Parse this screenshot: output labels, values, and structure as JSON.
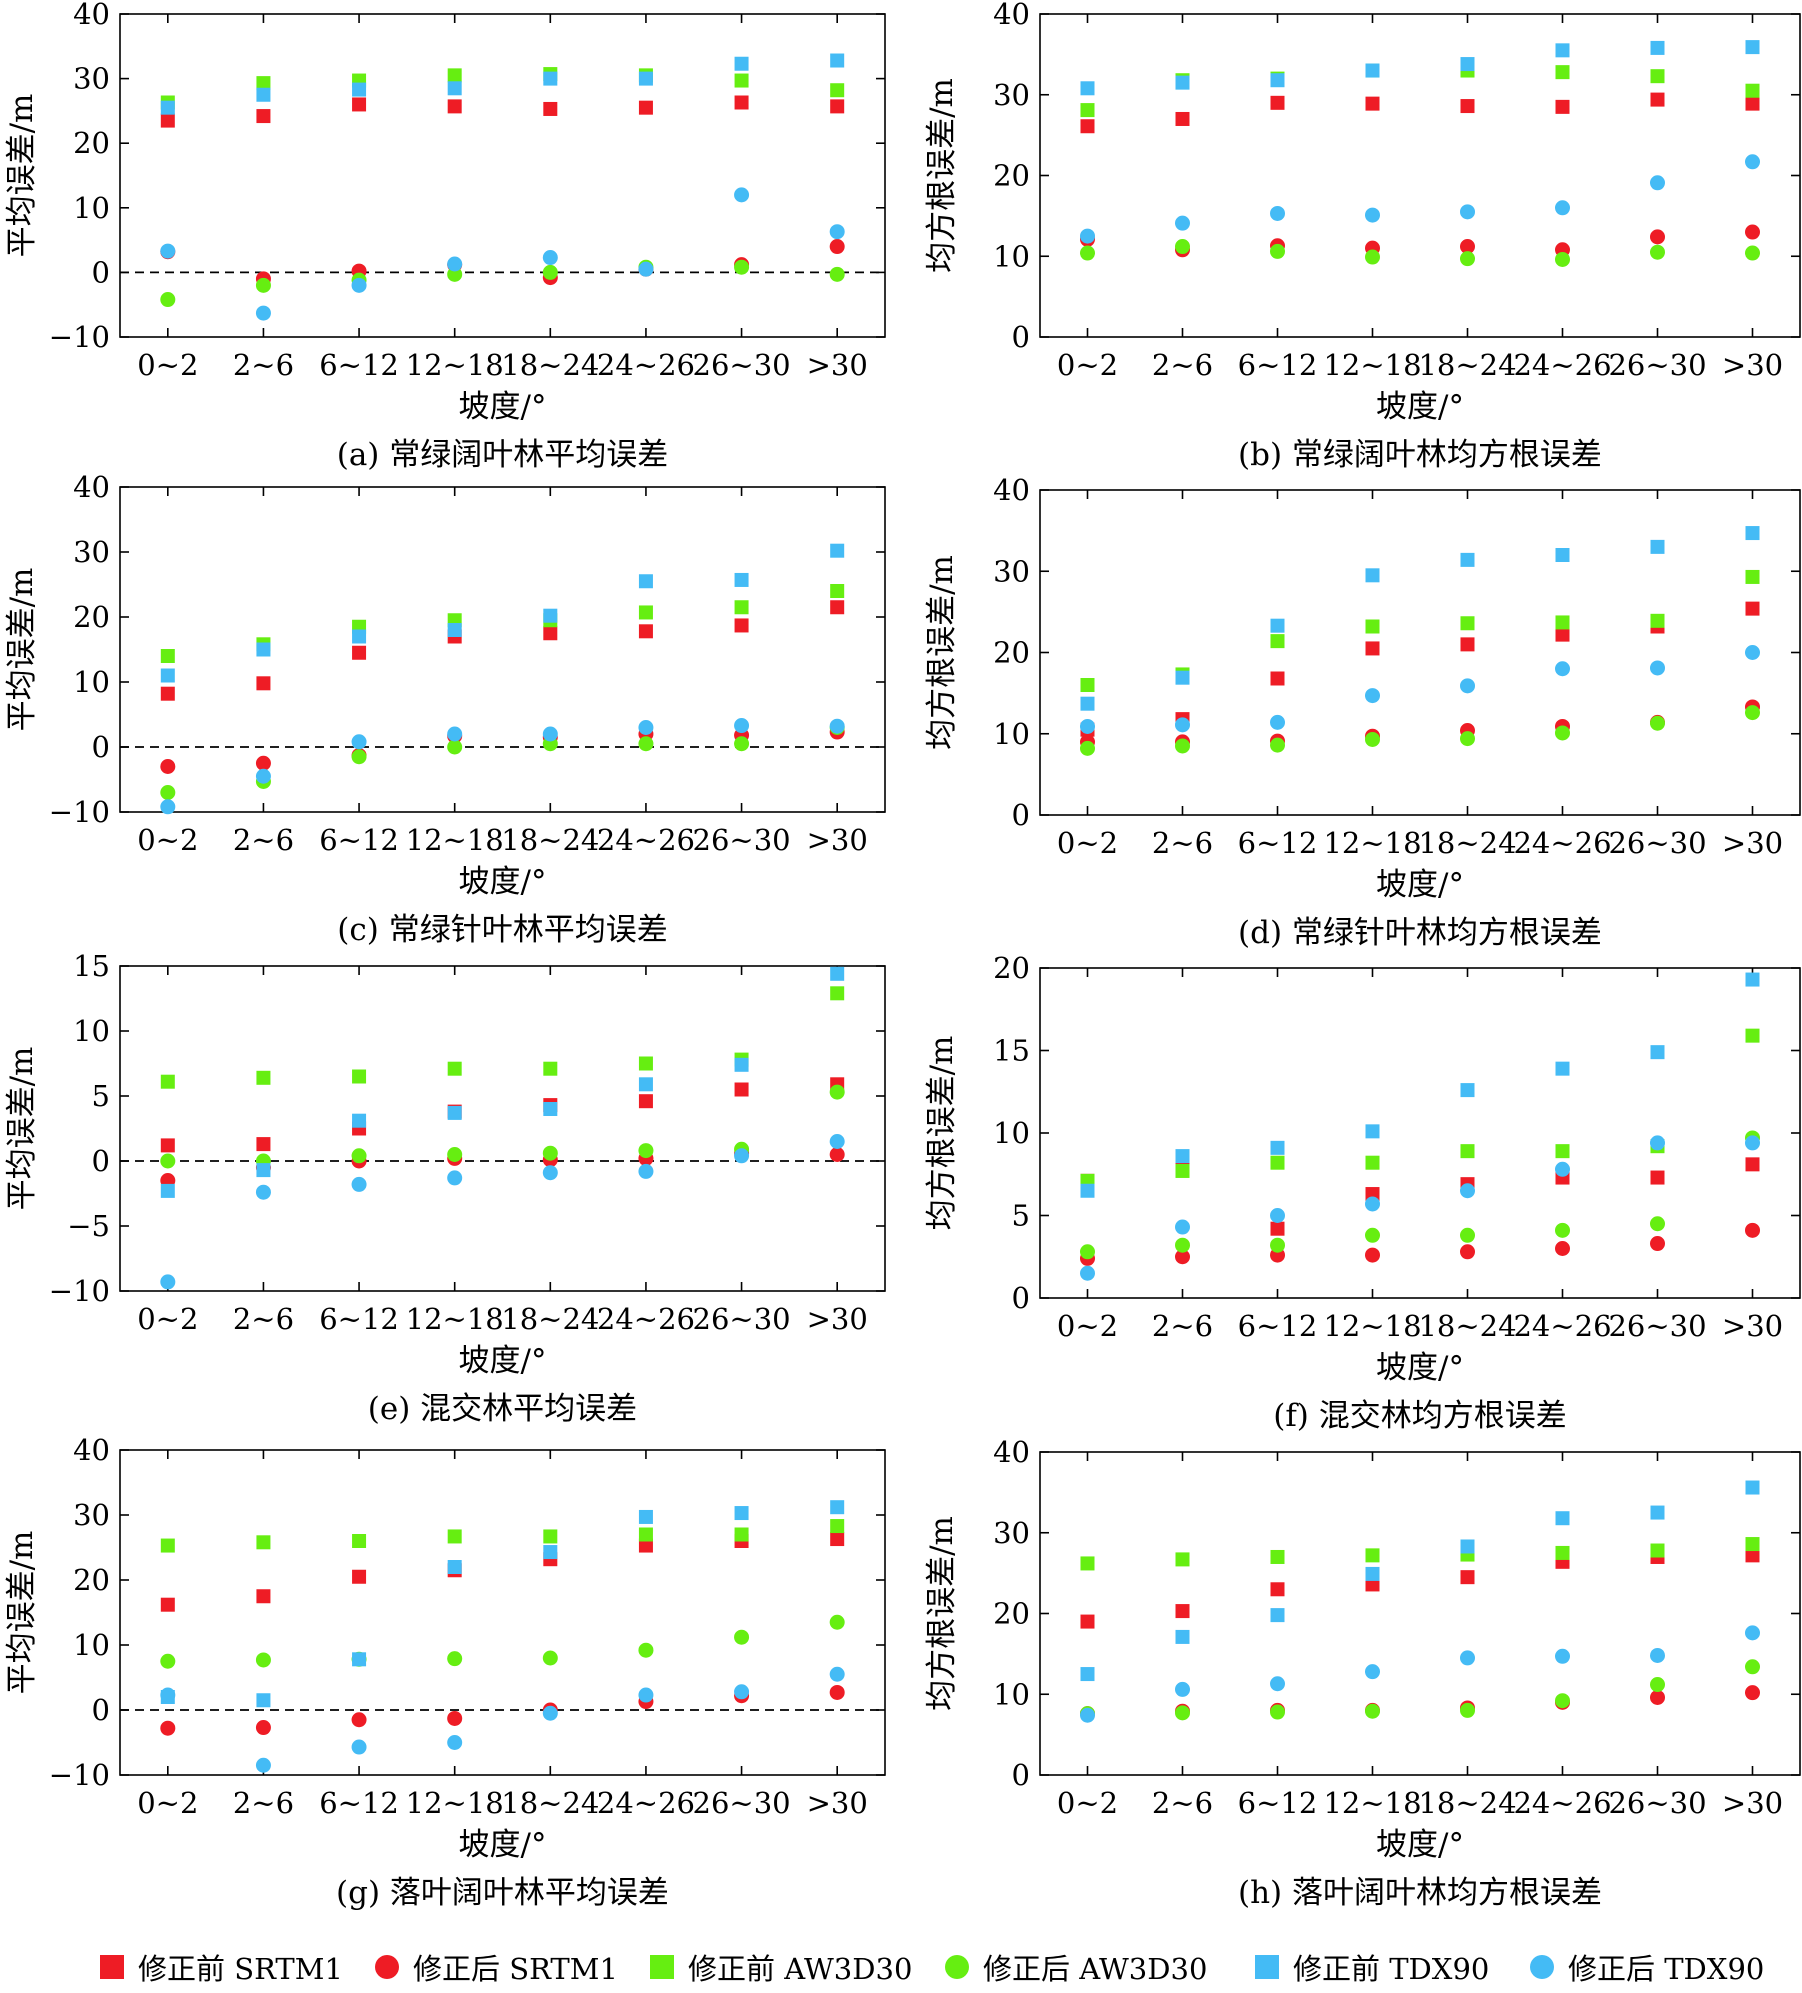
{
  "colors": {
    "srtm": "#ee1c25",
    "aw3d": "#66ee11",
    "tdx": "#44bbf5"
  },
  "legend": [
    {
      "label": "修正前 SRTM1",
      "marker": "square",
      "color": "#ee1c25"
    },
    {
      "label": "修正后 SRTM1",
      "marker": "circle",
      "color": "#ee1c25"
    },
    {
      "label": "修正前 AW3D30",
      "marker": "square",
      "color": "#66ee11"
    },
    {
      "label": "修正后 AW3D30",
      "marker": "circle",
      "color": "#66ee11"
    },
    {
      "label": "修正前 TDX90",
      "marker": "square",
      "color": "#44bbf5"
    },
    {
      "label": "修正后 TDX90",
      "marker": "circle",
      "color": "#44bbf5"
    }
  ],
  "chart_data": [
    {
      "type": "scatter",
      "caption": "(a) 常绿阔叶林平均误差",
      "xlabel": "坡度/°",
      "ylabel": "平均误差/m",
      "categories": [
        "0~2",
        "2~6",
        "6~12",
        "12~18",
        "18~24",
        "24~26",
        "26~30",
        ">30"
      ],
      "ylim": [
        -10,
        40
      ],
      "yticks": [
        -10,
        0,
        10,
        20,
        30,
        40
      ],
      "zero_line": true,
      "series": [
        {
          "name": "修正前 SRTM1",
          "values": [
            23.5,
            24.2,
            26,
            25.7,
            25.3,
            25.5,
            26.3,
            25.7
          ]
        },
        {
          "name": "修正后 SRTM1",
          "values": [
            3.2,
            -1,
            0.2,
            1.2,
            -0.8,
            0.5,
            1.2,
            4
          ]
        },
        {
          "name": "修正前 AW3D30",
          "values": [
            26.3,
            29.3,
            29.7,
            30.5,
            30.7,
            30.5,
            29.7,
            28.2
          ]
        },
        {
          "name": "修正后 AW3D30",
          "values": [
            -4.2,
            -2,
            -1.2,
            -0.3,
            0,
            0.8,
            0.8,
            -0.3
          ]
        },
        {
          "name": "修正前 TDX90",
          "values": [
            25.5,
            27.5,
            28.3,
            28.5,
            30,
            30,
            32.3,
            32.8
          ]
        },
        {
          "name": "修正后 TDX90",
          "values": [
            3.3,
            -6.3,
            -2,
            1.3,
            2.3,
            0.5,
            12,
            6.3
          ]
        }
      ]
    },
    {
      "type": "scatter",
      "caption": "(b) 常绿阔叶林均方根误差",
      "xlabel": "坡度/°",
      "ylabel": "均方根误差/m",
      "categories": [
        "0~2",
        "2~6",
        "6~12",
        "12~18",
        "18~24",
        "24~26",
        "26~30",
        ">30"
      ],
      "ylim": [
        0,
        40
      ],
      "yticks": [
        0,
        10,
        20,
        30,
        40
      ],
      "zero_line": false,
      "series": [
        {
          "name": "修正前 SRTM1",
          "values": [
            26.1,
            27,
            29,
            28.9,
            28.6,
            28.5,
            29.4,
            28.9
          ]
        },
        {
          "name": "修正后 SRTM1",
          "values": [
            12.1,
            10.8,
            11.3,
            11,
            11.2,
            10.8,
            12.4,
            13
          ]
        },
        {
          "name": "修正前 AW3D30",
          "values": [
            28.1,
            31.8,
            32,
            33,
            33,
            32.8,
            32.3,
            30.5
          ]
        },
        {
          "name": "修正后 AW3D30",
          "values": [
            10.4,
            11.2,
            10.6,
            9.9,
            9.7,
            9.6,
            10.5,
            10.4
          ]
        },
        {
          "name": "修正前 TDX90",
          "values": [
            30.8,
            31.5,
            31.8,
            33,
            33.8,
            35.5,
            35.8,
            35.9
          ]
        },
        {
          "name": "修正后 TDX90",
          "values": [
            12.5,
            14.1,
            15.3,
            15.1,
            15.5,
            16,
            19.1,
            21.7
          ]
        }
      ]
    },
    {
      "type": "scatter",
      "caption": "(c) 常绿针叶林平均误差",
      "xlabel": "坡度/°",
      "ylabel": "平均误差/m",
      "categories": [
        "0~2",
        "2~6",
        "6~12",
        "12~18",
        "18~24",
        "24~26",
        "26~30",
        ">30"
      ],
      "ylim": [
        -10,
        40
      ],
      "yticks": [
        -10,
        0,
        10,
        20,
        30,
        40
      ],
      "zero_line": true,
      "series": [
        {
          "name": "修正前 SRTM1",
          "values": [
            8.2,
            9.8,
            14.5,
            17,
            17.5,
            17.8,
            18.7,
            21.5
          ]
        },
        {
          "name": "修正后 SRTM1",
          "values": [
            -3,
            -2.5,
            -1.3,
            1.7,
            1.5,
            2,
            1.8,
            2.3
          ]
        },
        {
          "name": "修正前 AW3D30",
          "values": [
            14,
            15.8,
            18.5,
            19.5,
            19.5,
            20.7,
            21.5,
            24
          ]
        },
        {
          "name": "修正后 AW3D30",
          "values": [
            -7,
            -5.3,
            -1.5,
            0,
            0.5,
            0.5,
            0.5,
            3
          ]
        },
        {
          "name": "修正前 TDX90",
          "values": [
            11,
            15,
            17,
            18,
            20.2,
            25.5,
            25.7,
            30.2
          ]
        },
        {
          "name": "修正后 TDX90",
          "values": [
            -9.2,
            -4.5,
            0.8,
            2,
            2,
            3,
            3.3,
            3.2
          ]
        }
      ]
    },
    {
      "type": "scatter",
      "caption": "(d) 常绿针叶林均方根误差",
      "xlabel": "坡度/°",
      "ylabel": "均方根误差/m",
      "categories": [
        "0~2",
        "2~6",
        "6~12",
        "12~18",
        "18~24",
        "24~26",
        "26~30",
        ">30"
      ],
      "ylim": [
        0,
        40
      ],
      "yticks": [
        0,
        10,
        20,
        30,
        40
      ],
      "zero_line": false,
      "series": [
        {
          "name": "修正前 SRTM1",
          "values": [
            10.5,
            11.8,
            16.8,
            20.5,
            21,
            22.2,
            23.2,
            25.4
          ]
        },
        {
          "name": "修正后 SRTM1",
          "values": [
            9,
            9,
            9.1,
            9.7,
            10.4,
            10.9,
            11.4,
            13.3
          ]
        },
        {
          "name": "修正前 AW3D30",
          "values": [
            16,
            17.3,
            21.4,
            23.2,
            23.6,
            23.7,
            23.9,
            29.3
          ]
        },
        {
          "name": "修正后 AW3D30",
          "values": [
            8.2,
            8.5,
            8.6,
            9.3,
            9.4,
            10.1,
            11.3,
            12.6
          ]
        },
        {
          "name": "修正前 TDX90",
          "values": [
            13.7,
            16.9,
            23.3,
            29.5,
            31.4,
            32,
            33,
            34.7
          ]
        },
        {
          "name": "修正后 TDX90",
          "values": [
            10.9,
            11.1,
            11.4,
            14.7,
            15.9,
            18,
            18.1,
            20
          ]
        }
      ]
    },
    {
      "type": "scatter",
      "caption": "(e) 混交林平均误差",
      "xlabel": "坡度/°",
      "ylabel": "平均误差/m",
      "categories": [
        "0~2",
        "2~6",
        "6~12",
        "12~18",
        "18~24",
        "24~26",
        "26~30",
        ">30"
      ],
      "ylim": [
        -10,
        15
      ],
      "yticks": [
        -10,
        -5,
        0,
        5,
        10,
        15
      ],
      "zero_line": true,
      "series": [
        {
          "name": "修正前 SRTM1",
          "values": [
            1.2,
            1.3,
            2.5,
            3.8,
            4.3,
            4.6,
            5.5,
            5.9
          ]
        },
        {
          "name": "修正后 SRTM1",
          "values": [
            -1.5,
            -0.5,
            0,
            0.2,
            0.1,
            0.2,
            0.6,
            0.5
          ]
        },
        {
          "name": "修正前 AW3D30",
          "values": [
            6.1,
            6.4,
            6.5,
            7.1,
            7.1,
            7.5,
            7.8,
            12.9
          ]
        },
        {
          "name": "修正后 AW3D30",
          "values": [
            0,
            0,
            0.4,
            0.5,
            0.6,
            0.8,
            0.9,
            5.3
          ]
        },
        {
          "name": "修正前 TDX90",
          "values": [
            -2.3,
            -0.7,
            3.1,
            3.7,
            4,
            5.9,
            7.4,
            14.4
          ]
        },
        {
          "name": "修正后 TDX90",
          "values": [
            -9.3,
            -2.4,
            -1.8,
            -1.3,
            -0.9,
            -0.8,
            0.4,
            1.5
          ]
        }
      ]
    },
    {
      "type": "scatter",
      "caption": "(f) 混交林均方根误差",
      "xlabel": "坡度/°",
      "ylabel": "均方根误差/m",
      "categories": [
        "0~2",
        "2~6",
        "6~12",
        "12~18",
        "18~24",
        "24~26",
        "26~30",
        ">30"
      ],
      "ylim": [
        0,
        20
      ],
      "yticks": [
        0,
        5,
        10,
        15,
        20
      ],
      "zero_line": false,
      "series": [
        {
          "name": "修正前 SRTM1",
          "values": [
            7.1,
            8.5,
            4.2,
            6.3,
            6.9,
            7.3,
            7.3,
            8.1
          ]
        },
        {
          "name": "修正后 SRTM1",
          "values": [
            2.4,
            2.5,
            2.6,
            2.6,
            2.8,
            3,
            3.3,
            4.1
          ]
        },
        {
          "name": "修正前 AW3D30",
          "values": [
            7.1,
            7.7,
            8.2,
            8.2,
            8.9,
            8.9,
            9.2,
            15.9
          ]
        },
        {
          "name": "修正后 AW3D30",
          "values": [
            2.8,
            3.2,
            3.2,
            3.8,
            3.8,
            4.1,
            4.5,
            9.7
          ]
        },
        {
          "name": "修正前 TDX90",
          "values": [
            6.5,
            8.6,
            9.1,
            10.1,
            12.6,
            13.9,
            14.9,
            19.3
          ]
        },
        {
          "name": "修正后 TDX90",
          "values": [
            1.5,
            4.3,
            5,
            5.7,
            6.5,
            7.8,
            9.4,
            9.4
          ]
        }
      ]
    },
    {
      "type": "scatter",
      "caption": "(g) 落叶阔叶林平均误差",
      "xlabel": "坡度/°",
      "ylabel": "平均误差/m",
      "categories": [
        "0~2",
        "2~6",
        "6~12",
        "12~18",
        "18~24",
        "24~26",
        "26~30",
        ">30"
      ],
      "ylim": [
        -10,
        40
      ],
      "yticks": [
        -10,
        0,
        10,
        20,
        30,
        40
      ],
      "zero_line": true,
      "series": [
        {
          "name": "修正前 SRTM1",
          "values": [
            16.2,
            17.5,
            20.5,
            21.5,
            23.2,
            25.3,
            26,
            26.3
          ]
        },
        {
          "name": "修正后 SRTM1",
          "values": [
            -2.8,
            -2.7,
            -1.5,
            -1.3,
            0,
            1.3,
            2.2,
            2.7
          ]
        },
        {
          "name": "修正前 AW3D30",
          "values": [
            25.3,
            25.8,
            26,
            26.7,
            26.7,
            27,
            27,
            28.3
          ]
        },
        {
          "name": "修正后 AW3D30",
          "values": [
            7.5,
            7.7,
            7.8,
            7.9,
            8,
            9.2,
            11.2,
            13.5
          ]
        },
        {
          "name": "修正前 TDX90",
          "values": [
            2,
            1.5,
            7.8,
            22,
            24.3,
            29.7,
            30.3,
            31.2
          ]
        },
        {
          "name": "修正后 TDX90",
          "values": [
            2.3,
            -8.5,
            -5.7,
            -5,
            -0.5,
            2.3,
            2.8,
            5.5
          ]
        }
      ]
    },
    {
      "type": "scatter",
      "caption": "(h) 落叶阔叶林均方根误差",
      "xlabel": "坡度/°",
      "ylabel": "均方根误差/m",
      "categories": [
        "0~2",
        "2~6",
        "6~12",
        "12~18",
        "18~24",
        "24~26",
        "26~30",
        ">30"
      ],
      "ylim": [
        0,
        40
      ],
      "yticks": [
        0,
        10,
        20,
        30,
        40
      ],
      "zero_line": false,
      "series": [
        {
          "name": "修正前 SRTM1",
          "values": [
            19,
            20.3,
            23,
            23.6,
            24.5,
            26.4,
            27,
            27.2
          ]
        },
        {
          "name": "修正后 SRTM1",
          "values": [
            7.6,
            7.9,
            8,
            8,
            8.3,
            9,
            9.6,
            10.2
          ]
        },
        {
          "name": "修正前 AW3D30",
          "values": [
            26.2,
            26.7,
            27,
            27.2,
            27.3,
            27.5,
            27.8,
            28.6
          ]
        },
        {
          "name": "修正后 AW3D30",
          "values": [
            7.6,
            7.7,
            7.8,
            7.9,
            8,
            9.2,
            11.2,
            13.4
          ]
        },
        {
          "name": "修正前 TDX90",
          "values": [
            12.5,
            17.1,
            19.8,
            24.9,
            28.3,
            31.8,
            32.5,
            35.6
          ]
        },
        {
          "name": "修正后 TDX90",
          "values": [
            7.4,
            10.6,
            11.3,
            12.8,
            14.5,
            14.7,
            14.8,
            17.6
          ]
        }
      ]
    }
  ]
}
